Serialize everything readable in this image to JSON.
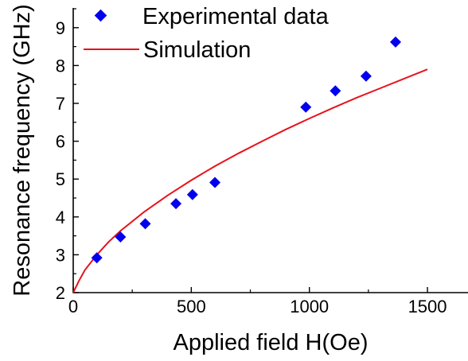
{
  "chart_data": {
    "type": "scatter",
    "title": "",
    "xlabel": "Applied field H(Oe)",
    "ylabel": "Resonance frequency (GHz)",
    "xlim": [
      0,
      1750
    ],
    "ylim": [
      2,
      9.5
    ],
    "xticks": [
      0,
      500,
      1000,
      1500
    ],
    "yticks": [
      2,
      3,
      4,
      5,
      6,
      7,
      8,
      9
    ],
    "x_tick_labels": [
      "0",
      "500",
      "1000",
      "1500"
    ],
    "y_tick_labels": [
      "2",
      "3",
      "4",
      "5",
      "6",
      "7",
      "8",
      "9"
    ],
    "grid": false,
    "legend_position": "top-left",
    "series": [
      {
        "name": "Experimental data",
        "kind": "scatter",
        "marker": "diamond",
        "color": "#0000ee",
        "x": [
          100,
          200,
          305,
          435,
          505,
          600,
          985,
          1110,
          1240,
          1365
        ],
        "y": [
          2.92,
          3.47,
          3.82,
          4.35,
          4.59,
          4.91,
          6.9,
          7.33,
          7.72,
          8.62
        ]
      },
      {
        "name": "Simulation",
        "kind": "line",
        "color": "#e8121c",
        "x": [
          0,
          25,
          50,
          100,
          150,
          200,
          300,
          400,
          500,
          600,
          700,
          800,
          900,
          1000,
          1100,
          1200,
          1300,
          1400,
          1500
        ],
        "y": [
          2.0,
          2.32,
          2.6,
          3.0,
          3.34,
          3.63,
          4.13,
          4.57,
          4.97,
          5.34,
          5.68,
          6.0,
          6.31,
          6.6,
          6.88,
          7.15,
          7.4,
          7.65,
          7.9
        ]
      }
    ]
  }
}
